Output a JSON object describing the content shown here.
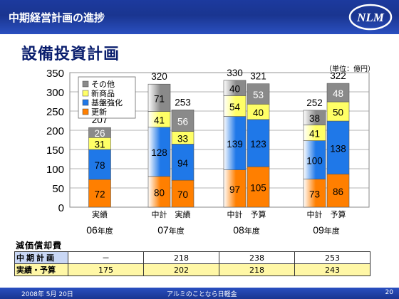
{
  "header": {
    "title": "中期経営計画の進捗",
    "logo_text": "NLM"
  },
  "slide_title": "設備投資計画",
  "unit_label": "（単位：億円）",
  "colors": {
    "その他": "#8a8a8a",
    "新商品": "#ffff66",
    "基盤強化": "#1f78e8",
    "更新": "#ff7f00"
  },
  "chart_data": {
    "type": "bar",
    "stacked": true,
    "ylim": [
      0,
      350
    ],
    "yticks": [
      0,
      50,
      100,
      150,
      200,
      250,
      300,
      350
    ],
    "legend": [
      "その他",
      "新商品",
      "基盤強化",
      "更新"
    ],
    "legend_position": "top-left",
    "groups": [
      {
        "name": "06",
        "suffix": "年度",
        "bars": [
          {
            "label": "実績",
            "total": 207,
            "values": {
              "更新": 72,
              "基盤強化": 78,
              "新商品": 31,
              "その他": 26
            }
          }
        ]
      },
      {
        "name": "07",
        "suffix": "年度",
        "bars": [
          {
            "label": "中計",
            "total": 320,
            "values": {
              "更新": 80,
              "基盤強化": 128,
              "新商品": 41,
              "その他": 71
            }
          },
          {
            "label": "実績",
            "total": 253,
            "values": {
              "更新": 70,
              "基盤強化": 94,
              "新商品": 33,
              "その他": 56
            }
          }
        ]
      },
      {
        "name": "08",
        "suffix": "年度",
        "bars": [
          {
            "label": "中計",
            "total": 330,
            "values": {
              "更新": 97,
              "基盤強化": 139,
              "新商品": 54,
              "その他": 40
            }
          },
          {
            "label": "予算",
            "total": 321,
            "values": {
              "更新": 105,
              "基盤強化": 123,
              "新商品": 40,
              "その他": 53
            }
          }
        ]
      },
      {
        "name": "09",
        "suffix": "年度",
        "bars": [
          {
            "label": "中計",
            "total": 252,
            "values": {
              "更新": 73,
              "基盤強化": 100,
              "新商品": 41,
              "その他": 38
            }
          },
          {
            "label": "予算",
            "total": 322,
            "values": {
              "更新": 86,
              "基盤強化": 138,
              "新商品": 50,
              "その他": 48
            }
          }
        ]
      }
    ]
  },
  "depreciation": {
    "title": "減価償却費",
    "rows": [
      {
        "label": "中期計画",
        "values": [
          "－",
          "218",
          "238",
          "253"
        ]
      },
      {
        "label": "実績・予算",
        "values": [
          "175",
          "202",
          "218",
          "243"
        ]
      }
    ]
  },
  "footer": {
    "date": "2008年 5月 20日",
    "center": "アルミのことなら日軽金",
    "page": "20"
  }
}
